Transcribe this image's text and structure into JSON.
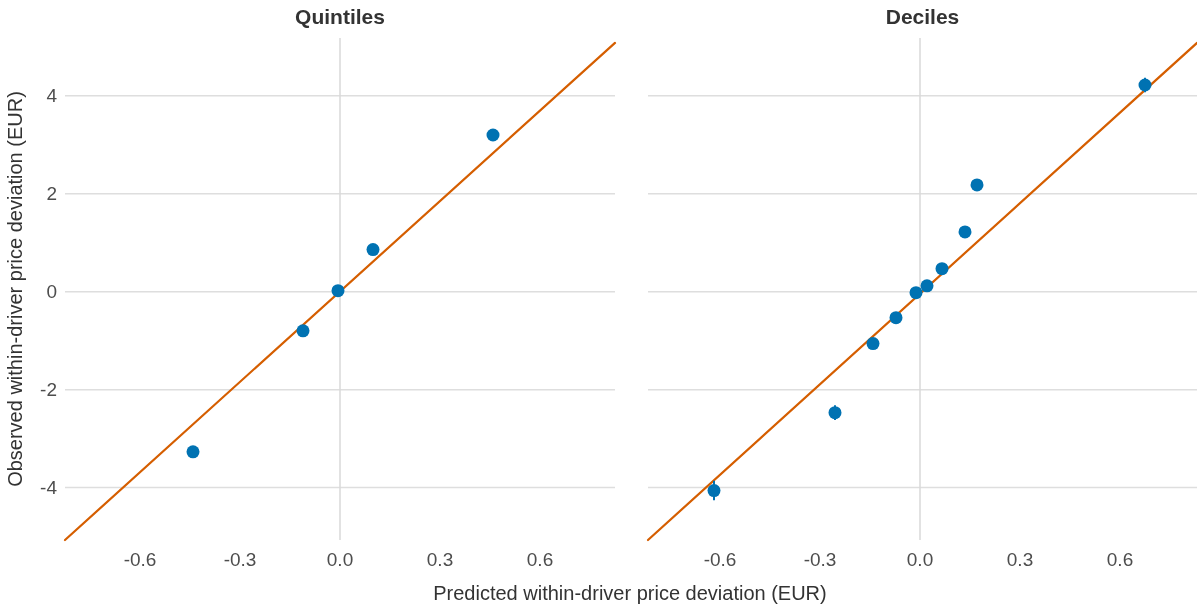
{
  "chart_data": [
    {
      "type": "scatter",
      "title": "Quintiles",
      "xlabel": "Predicted within-driver price deviation (EUR)",
      "ylabel": "Observed within-driver price deviation (EUR)",
      "xlim": [
        -0.825,
        0.825
      ],
      "ylim": [
        -5.07,
        5.18
      ],
      "xticks": [
        -0.6,
        -0.3,
        {
          "value": 0,
          "label": "0.0"
        },
        0.3,
        0.6
      ],
      "yticks": [
        -4,
        -2,
        0,
        2,
        4
      ],
      "grid": "y",
      "ref_lines": [
        {
          "axis": "x",
          "value": 0,
          "color": "#d9d9d9"
        }
      ],
      "series": [
        {
          "type": "line",
          "color": "#d55e00",
          "x": [
            -0.825,
            0.825
          ],
          "values": [
            -5.07,
            5.08
          ]
        },
        {
          "marker": "circle",
          "color": "#0072b2",
          "x": [
            -0.441,
            -0.111,
            -0.006,
            0.099,
            0.459
          ],
          "values": [
            -3.27,
            -0.8,
            0.02,
            0.86,
            3.2
          ]
        }
      ]
    },
    {
      "type": "scatter",
      "title": "Deciles",
      "xlim": [
        -0.816,
        0.831
      ],
      "ylim": [
        -5.07,
        5.18
      ],
      "xticks": [
        -0.6,
        -0.3,
        {
          "value": 0,
          "label": "0.0"
        },
        0.3,
        0.6
      ],
      "yticks": [
        -4,
        -2,
        0,
        2,
        4
      ],
      "tick_labels": "x",
      "grid": "y",
      "ref_lines": [
        {
          "axis": "x",
          "value": 0,
          "color": "#d9d9d9"
        }
      ],
      "series": [
        {
          "type": "line",
          "color": "#d55e00",
          "x": [
            -0.816,
            0.831
          ],
          "values": [
            -5.07,
            5.08
          ]
        },
        {
          "marker": "circle",
          "color": "#0072b2",
          "x": [
            -0.618,
            -0.255,
            -0.141,
            -0.072,
            -0.012,
            0.021,
            0.066,
            0.135,
            0.171,
            0.675
          ],
          "values": [
            -4.06,
            -2.47,
            -1.06,
            -0.53,
            -0.02,
            0.12,
            0.47,
            1.22,
            2.18,
            4.22
          ],
          "errors": [
            0.2,
            0.15,
            0.1,
            0.08,
            0.06,
            0.08,
            0.08,
            0.1,
            0.12,
            0.15
          ]
        }
      ]
    }
  ]
}
